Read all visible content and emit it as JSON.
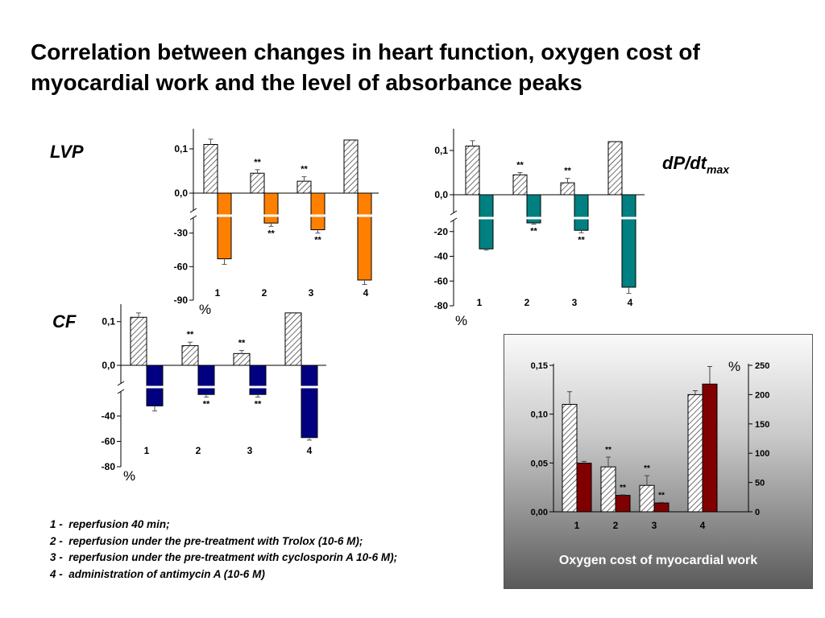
{
  "title": "Correlation between changes in heart function, oxygen cost of myocardial work and the level of absorbance peaks",
  "labels": {
    "lvp": "LVP",
    "cf": "CF",
    "dpdt_main": "dP/dt",
    "dpdt_sub": "max"
  },
  "legend": [
    {
      "num": "1 -",
      "text": "reperfusion 40 min;"
    },
    {
      "num": "2 -",
      "text": "reperfusion under the pre-treatment with Trolox (10-6 M);"
    },
    {
      "num": "3 -",
      "text": "reperfusion under the pre-treatment with cyclosporin A 10-6 M);"
    },
    {
      "num": "4 -",
      "text": "administration of antimycin A (10-6 M)"
    }
  ],
  "panel_caption": "Oxygen cost of myocardial work",
  "colors": {
    "lvp": "#ff8000",
    "dpdt": "#008080",
    "cf": "#000080",
    "oxygen": "#800000"
  },
  "chart_data": [
    {
      "id": "lvp",
      "type": "bar",
      "categories": [
        "1",
        "2",
        "3",
        "4"
      ],
      "top": {
        "values": [
          0.11,
          0.045,
          0.027,
          0.12
        ],
        "errors": [
          0.012,
          0.008,
          0.01,
          0.0
        ],
        "ticks": [
          "0,0",
          "0,1"
        ],
        "ylim": [
          0,
          0.14
        ],
        "sig": [
          "",
          "**",
          "**",
          ""
        ]
      },
      "bottom": {
        "values": [
          -53,
          -21,
          -27,
          -72
        ],
        "errors": [
          5,
          3,
          3,
          4
        ],
        "ticks": [
          "-30",
          "-60",
          "-90"
        ],
        "ylim": [
          -90,
          0
        ],
        "sig": [
          "",
          "**",
          "**",
          ""
        ]
      },
      "unit_label": "%"
    },
    {
      "id": "dpdt",
      "type": "bar",
      "categories": [
        "1",
        "2",
        "3",
        "4"
      ],
      "top": {
        "values": [
          0.11,
          0.045,
          0.027,
          0.12
        ],
        "errors": [
          0.012,
          0.005,
          0.01,
          0.0
        ],
        "ticks": [
          "0,0",
          "0,1"
        ],
        "ylim": [
          0,
          0.14
        ],
        "sig": [
          "",
          "**",
          "**",
          ""
        ]
      },
      "bottom": {
        "values": [
          -34,
          -13,
          -19,
          -65
        ],
        "errors": [
          1,
          1,
          2,
          5
        ],
        "ticks": [
          "-20",
          "-40",
          "-60",
          "-80"
        ],
        "ylim": [
          -80,
          0
        ],
        "sig": [
          "",
          "**",
          "**",
          ""
        ]
      },
      "unit_label": "%"
    },
    {
      "id": "cf",
      "type": "bar",
      "categories": [
        "1",
        "2",
        "3",
        "4"
      ],
      "top": {
        "values": [
          0.11,
          0.045,
          0.027,
          0.12
        ],
        "errors": [
          0.01,
          0.008,
          0.007,
          0.0
        ],
        "ticks": [
          "0,0",
          "0,1"
        ],
        "ylim": [
          0,
          0.14
        ],
        "sig": [
          "",
          "**",
          "**",
          ""
        ]
      },
      "bottom": {
        "values": [
          -32,
          -23,
          -23,
          -57
        ],
        "errors": [
          4,
          2,
          2,
          2
        ],
        "ticks": [
          "-40",
          "-60",
          "-80"
        ],
        "ylim": [
          -80,
          0
        ],
        "sig": [
          "",
          "**",
          "**",
          ""
        ]
      },
      "unit_label": "%"
    },
    {
      "id": "oxygen",
      "type": "bar",
      "categories": [
        "1",
        "2",
        "3",
        "4"
      ],
      "series": [
        {
          "values": [
            0.11,
            0.046,
            0.027,
            0.12
          ],
          "errors": [
            0.013,
            0.01,
            0.01,
            0.004
          ],
          "sig": [
            "",
            "**",
            "**",
            ""
          ]
        },
        {
          "values": [
            83,
            28,
            15,
            218
          ],
          "errors": [
            3,
            1,
            1,
            30
          ],
          "sig": [
            "",
            "**",
            "**",
            ""
          ]
        }
      ],
      "left_ticks": [
        "0,00",
        "0,05",
        "0,10",
        "0,15"
      ],
      "left_ylim": [
        0,
        0.15
      ],
      "right_ticks": [
        "0",
        "50",
        "100",
        "150",
        "200",
        "250"
      ],
      "right_ylim": [
        0,
        250
      ],
      "right_unit": "%"
    }
  ]
}
